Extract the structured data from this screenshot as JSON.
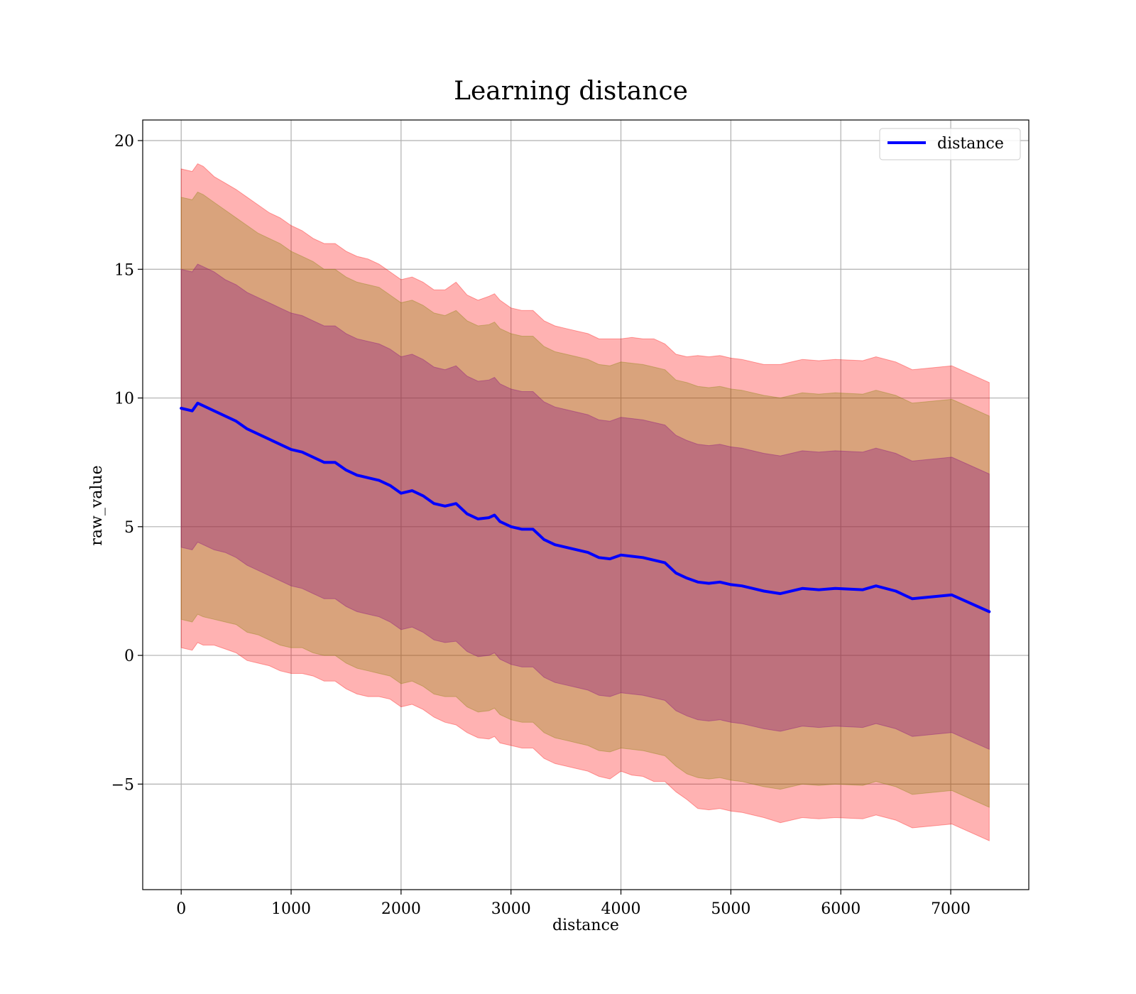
{
  "chart_data": {
    "type": "line",
    "title": "Learning distance",
    "xlabel": "distance",
    "ylabel": "raw_value",
    "xlim": [
      -350,
      7710
    ],
    "ylim": [
      -9.1,
      20.8
    ],
    "xticks": [
      0,
      1000,
      2000,
      3000,
      4000,
      5000,
      6000,
      7000
    ],
    "yticks": [
      -5,
      0,
      5,
      10,
      15,
      20
    ],
    "xtick_labels": [
      "0",
      "1000",
      "2000",
      "3000",
      "4000",
      "5000",
      "6000",
      "7000"
    ],
    "ytick_labels": [
      "−5",
      "0",
      "5",
      "10",
      "15",
      "20"
    ],
    "grid": true,
    "legend": {
      "position": "top-right",
      "entries": [
        "distance"
      ]
    },
    "series": [
      {
        "name": "distance",
        "color": "#0000ff",
        "x": [
          0,
          100,
          150,
          200,
          300,
          400,
          500,
          600,
          700,
          800,
          900,
          1000,
          1100,
          1200,
          1300,
          1400,
          1500,
          1600,
          1700,
          1800,
          1900,
          2000,
          2100,
          2200,
          2300,
          2400,
          2500,
          2600,
          2700,
          2800,
          2850,
          2900,
          3000,
          3100,
          3200,
          3300,
          3400,
          3500,
          3600,
          3700,
          3800,
          3900,
          4000,
          4100,
          4200,
          4300,
          4400,
          4500,
          4600,
          4700,
          4800,
          4900,
          5000,
          5100,
          5200,
          5300,
          5450,
          5650,
          5800,
          5950,
          6200,
          6320,
          6500,
          6650,
          7010,
          7350
        ],
        "y": [
          9.6,
          9.5,
          9.8,
          9.7,
          9.5,
          9.3,
          9.1,
          8.8,
          8.6,
          8.4,
          8.2,
          8.0,
          7.9,
          7.7,
          7.5,
          7.5,
          7.2,
          7.0,
          6.9,
          6.8,
          6.6,
          6.3,
          6.4,
          6.2,
          5.9,
          5.8,
          5.9,
          5.5,
          5.3,
          5.35,
          5.45,
          5.2,
          5.0,
          4.9,
          4.9,
          4.5,
          4.3,
          4.2,
          4.1,
          4.0,
          3.8,
          3.75,
          3.9,
          3.85,
          3.8,
          3.7,
          3.6,
          3.2,
          3.0,
          2.85,
          2.8,
          2.85,
          2.75,
          2.7,
          2.6,
          2.5,
          2.4,
          2.6,
          2.55,
          2.6,
          2.55,
          2.7,
          2.5,
          2.2,
          2.35,
          1.7
        ]
      }
    ],
    "bands": [
      {
        "sigma": 3,
        "color": "#ff0000",
        "opacity": 0.3,
        "offset": [
          9.3,
          9.3,
          9.3,
          9.3,
          9.1,
          9.05,
          9.0,
          9.0,
          8.9,
          8.8,
          8.8,
          8.7,
          8.6,
          8.5,
          8.5,
          8.5,
          8.5,
          8.5,
          8.5,
          8.4,
          8.3,
          8.3,
          8.3,
          8.3,
          8.3,
          8.4,
          8.6,
          8.5,
          8.5,
          8.6,
          8.6,
          8.6,
          8.5,
          8.5,
          8.5,
          8.5,
          8.5,
          8.5,
          8.5,
          8.5,
          8.5,
          8.55,
          8.4,
          8.5,
          8.5,
          8.6,
          8.5,
          8.5,
          8.6,
          8.8,
          8.8,
          8.8,
          8.8,
          8.8,
          8.8,
          8.8,
          8.9,
          8.9,
          8.9,
          8.9,
          8.9,
          8.9,
          8.9,
          8.9,
          8.9,
          8.9
        ]
      },
      {
        "sigma": 2,
        "color": "#808000",
        "opacity": 0.3,
        "offset": [
          8.2,
          8.2,
          8.2,
          8.2,
          8.1,
          8.0,
          7.9,
          7.9,
          7.8,
          7.8,
          7.8,
          7.7,
          7.6,
          7.6,
          7.5,
          7.5,
          7.5,
          7.5,
          7.5,
          7.5,
          7.4,
          7.4,
          7.4,
          7.4,
          7.4,
          7.4,
          7.5,
          7.5,
          7.5,
          7.5,
          7.5,
          7.5,
          7.5,
          7.5,
          7.5,
          7.5,
          7.5,
          7.5,
          7.5,
          7.5,
          7.5,
          7.5,
          7.5,
          7.5,
          7.5,
          7.5,
          7.5,
          7.5,
          7.6,
          7.6,
          7.6,
          7.6,
          7.6,
          7.6,
          7.6,
          7.6,
          7.6,
          7.6,
          7.6,
          7.6,
          7.6,
          7.6,
          7.6,
          7.6,
          7.6,
          7.6
        ]
      },
      {
        "sigma": 1,
        "color": "#800080",
        "opacity": 0.3,
        "offset": [
          5.4,
          5.4,
          5.4,
          5.4,
          5.4,
          5.3,
          5.3,
          5.3,
          5.3,
          5.3,
          5.3,
          5.3,
          5.3,
          5.3,
          5.3,
          5.3,
          5.3,
          5.3,
          5.3,
          5.3,
          5.3,
          5.3,
          5.3,
          5.3,
          5.3,
          5.3,
          5.35,
          5.35,
          5.35,
          5.35,
          5.35,
          5.35,
          5.35,
          5.35,
          5.35,
          5.35,
          5.35,
          5.35,
          5.35,
          5.35,
          5.35,
          5.35,
          5.35,
          5.35,
          5.35,
          5.35,
          5.35,
          5.35,
          5.35,
          5.35,
          5.35,
          5.35,
          5.35,
          5.35,
          5.35,
          5.35,
          5.35,
          5.35,
          5.35,
          5.35,
          5.35,
          5.35,
          5.35,
          5.35,
          5.35,
          5.35
        ]
      }
    ]
  }
}
